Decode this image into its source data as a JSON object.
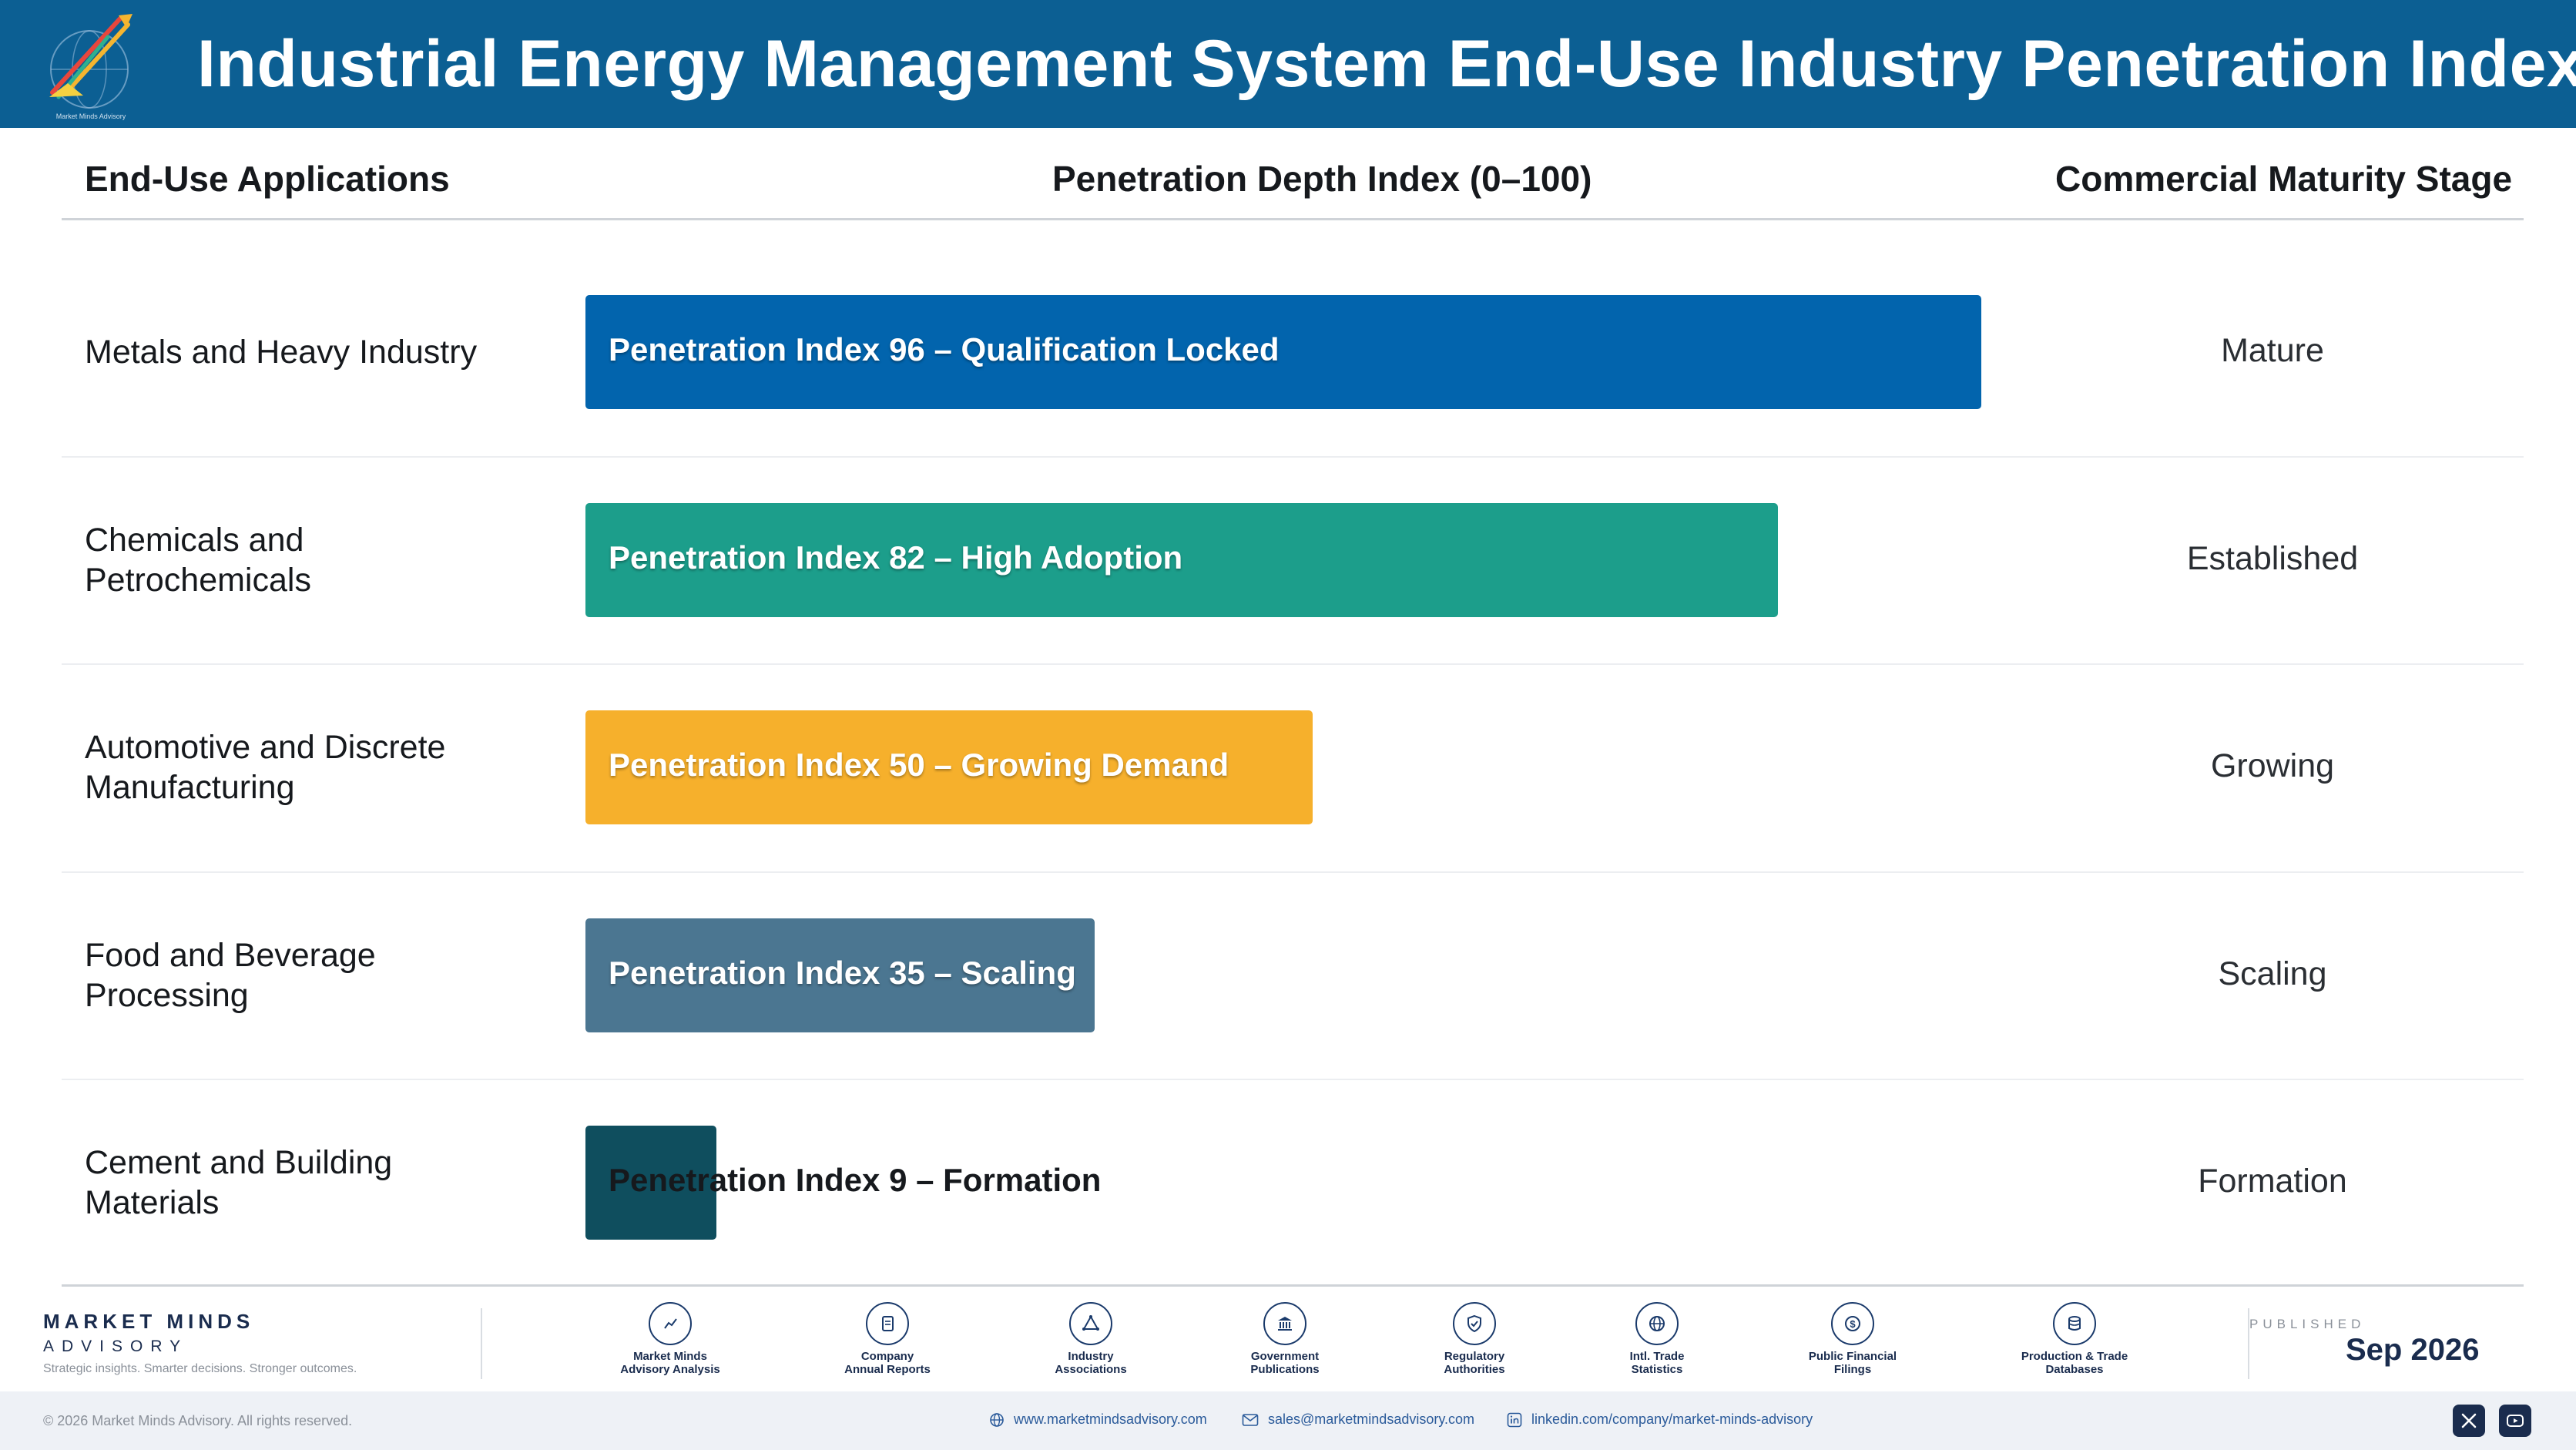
{
  "header": {
    "title": "Industrial Energy Management System End-Use Industry Penetration Index",
    "logo_caption": "Market Minds Advisory"
  },
  "columns": {
    "applications": "End-Use Applications",
    "index": "Penetration Depth Index (0–100)",
    "stage": "Commercial Maturity Stage"
  },
  "chart_data": {
    "type": "bar",
    "orientation": "horizontal",
    "xlim": [
      0,
      100
    ],
    "categories": [
      "Metals and Heavy Industry",
      "Chemicals and Petrochemicals",
      "Automotive and Discrete Manufacturing",
      "Food and Beverage Processing",
      "Cement and Building Materials"
    ],
    "values": [
      96,
      82,
      50,
      35,
      9
    ],
    "data_labels": [
      "Penetration Index 96 – Qualification Locked",
      "Penetration Index 82 – High Adoption",
      "Penetration Index 50 – Growing Demand",
      "Penetration Index 35 – Scaling",
      "Penetration Index 9 – Formation"
    ],
    "stages": [
      "Mature",
      "Established",
      "Growing",
      "Scaling",
      "Formation"
    ],
    "colors": [
      "#0264ad",
      "#1c9e8b",
      "#f6b02c",
      "#4b7691",
      "#0f4e5e"
    ]
  },
  "footer": {
    "brand_name": "MARKET MINDS",
    "brand_sub": "ADVISORY",
    "tagline": "Strategic insights. Smarter decisions. Stronger outcomes.",
    "sources": [
      {
        "line1": "Market Minds",
        "line2": "Advisory Analysis",
        "icon": "trend-chart-icon"
      },
      {
        "line1": "Company",
        "line2": "Annual Reports",
        "icon": "document-icon"
      },
      {
        "line1": "Industry",
        "line2": "Associations",
        "icon": "network-icon"
      },
      {
        "line1": "Government",
        "line2": "Publications",
        "icon": "government-building-icon"
      },
      {
        "line1": "Regulatory",
        "line2": "Authorities",
        "icon": "shield-check-icon"
      },
      {
        "line1": "Intl. Trade",
        "line2": "Statistics",
        "icon": "globe-icon"
      },
      {
        "line1": "Public Financial",
        "line2": "Filings",
        "icon": "dollar-coin-icon"
      },
      {
        "line1": "Production & Trade",
        "line2": "Databases",
        "icon": "database-icon"
      }
    ],
    "published_label": "PUBLISHED",
    "published_date": "Sep 2026",
    "copyright": "© 2026 Market Minds Advisory. All rights reserved.",
    "website": "www.marketmindsadvisory.com",
    "email": "sales@marketmindsadvisory.com",
    "linkedin": "linkedin.com/company/market-minds-advisory"
  }
}
